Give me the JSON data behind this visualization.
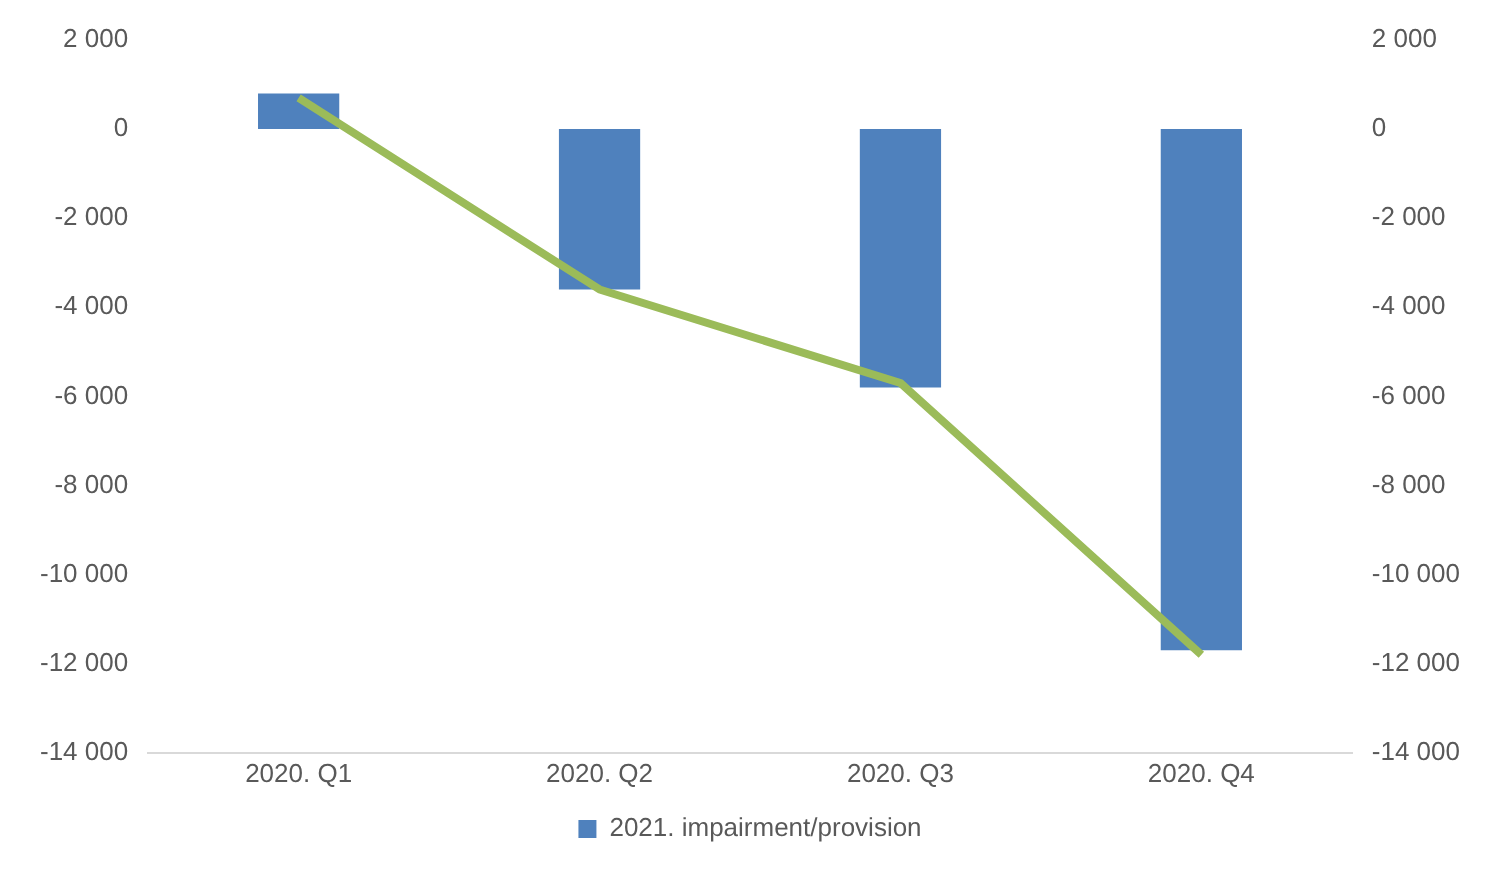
{
  "chart_data": {
    "type": "bar",
    "categories": [
      "2020. Q1",
      "2020. Q2",
      "2020. Q3",
      "2020. Q4"
    ],
    "series": [
      {
        "name": "2021. impairment/provision",
        "color": "#4f81bd",
        "values": [
          800,
          -3600,
          -5800,
          -11700
        ]
      },
      {
        "type": "line",
        "axis": "y2",
        "color": "#9bbb59",
        "values": [
          700,
          -3600,
          -5700,
          -11800
        ],
        "marker": "none"
      }
    ],
    "ylim": [
      -14000,
      2000
    ],
    "yticks": [
      {
        "value": 2000,
        "label": "2 000"
      },
      0,
      {
        "value": -2000,
        "label": "-2 000"
      },
      {
        "value": -4000,
        "label": "-4 000"
      },
      {
        "value": -6000,
        "label": "-6 000"
      },
      {
        "value": -8000,
        "label": "-8 000"
      },
      {
        "value": -10000,
        "label": "-10 000"
      },
      {
        "value": -12000,
        "label": "-12 000"
      },
      {
        "value": -14000,
        "label": "-14 000"
      }
    ],
    "y2lim": [
      -14000,
      2000
    ],
    "y2ticks": [
      {
        "value": 2000,
        "label": "2 000"
      },
      0,
      {
        "value": -2000,
        "label": "-2 000"
      },
      {
        "value": -4000,
        "label": "-4 000"
      },
      {
        "value": -6000,
        "label": "-6 000"
      },
      {
        "value": -8000,
        "label": "-8 000"
      },
      {
        "value": -10000,
        "label": "-10 000"
      },
      {
        "value": -12000,
        "label": "-12 000"
      },
      {
        "value": -14000,
        "label": "-14 000"
      }
    ],
    "grid": false,
    "legend": "bottom"
  }
}
